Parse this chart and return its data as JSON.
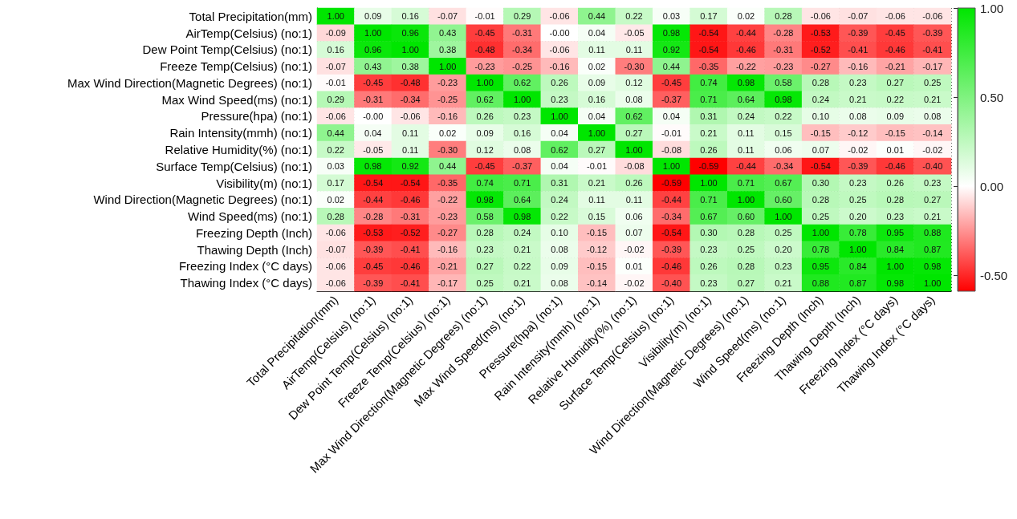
{
  "chart_data": {
    "type": "heatmap",
    "categories": [
      "Total Precipitation(mm)",
      "AirTemp(Celsius) (no:1)",
      "Dew Point Temp(Celsius) (no:1)",
      "Freeze Temp(Celsius) (no:1)",
      "Max Wind Direction(Magnetic Degrees) (no:1)",
      "Max Wind Speed(ms) (no:1)",
      "Pressure(hpa) (no:1)",
      "Rain Intensity(mmh) (no:1)",
      "Relative Humidity(%) (no:1)",
      "Surface Temp(Celsius) (no:1)",
      "Visibility(m) (no:1)",
      "Wind Direction(Magnetic Degrees) (no:1)",
      "Wind Speed(ms) (no:1)",
      "Freezing Depth (Inch)",
      "Thawing Depth (Inch)",
      "Freezing Index (°C days)",
      "Thawing Index (°C days)"
    ],
    "y_categories": [
      "Total Precipitation(mm)",
      "AirTemp(Celsius) (no:1)",
      "Dew Point Temp(Celsius) (no:1)",
      "Freeze Temp(Celsius) (no:1)",
      "Max Wind Direction(Magnetic Degrees) (no:1)",
      "Max Wind Speed(ms) (no:1)",
      "Pressure(hpa) (no:1)",
      "Rain Intensity(mmh) (no:1)",
      "Relative Humidity(%) (no:1)",
      "Surface Temp(Celsius) (no:1)",
      "Visibility(m) (no:1)",
      "Wind Direction(Magnetic Degrees) (no:1)",
      "Wind Speed(ms) (no:1)",
      "Freezing Depth (Inch)",
      "Thawing Depth (Inch)",
      "Freezing Index (°C days)",
      "Thawing Index (°C days)"
    ],
    "cells": [
      [
        1.0,
        0.09,
        0.16,
        -0.07,
        -0.01,
        0.29,
        -0.06,
        0.44,
        0.22,
        0.03,
        0.17,
        0.02,
        0.28,
        -0.06,
        -0.07,
        -0.06,
        -0.06
      ],
      [
        -0.09,
        1.0,
        0.96,
        0.43,
        -0.45,
        -0.31,
        -0.0,
        0.04,
        -0.05,
        0.98,
        -0.54,
        -0.44,
        -0.28,
        -0.53,
        -0.39,
        -0.45,
        -0.39
      ],
      [
        0.16,
        0.96,
        1.0,
        0.38,
        -0.48,
        -0.34,
        -0.06,
        0.11,
        0.11,
        0.92,
        -0.54,
        -0.46,
        -0.31,
        -0.52,
        -0.41,
        -0.46,
        -0.41
      ],
      [
        -0.07,
        0.43,
        0.38,
        1.0,
        -0.23,
        -0.25,
        -0.16,
        0.02,
        -0.3,
        0.44,
        -0.35,
        -0.22,
        -0.23,
        -0.27,
        -0.16,
        -0.21,
        -0.17
      ],
      [
        -0.01,
        -0.45,
        -0.48,
        -0.23,
        1.0,
        0.62,
        0.26,
        0.09,
        0.12,
        -0.45,
        0.74,
        0.98,
        0.58,
        0.28,
        0.23,
        0.27,
        0.25
      ],
      [
        0.29,
        -0.31,
        -0.34,
        -0.25,
        0.62,
        1.0,
        0.23,
        0.16,
        0.08,
        -0.37,
        0.71,
        0.64,
        0.98,
        0.24,
        0.21,
        0.22,
        0.21
      ],
      [
        -0.06,
        -0.0,
        -0.06,
        -0.16,
        0.26,
        0.23,
        1.0,
        0.04,
        0.62,
        0.04,
        0.31,
        0.24,
        0.22,
        0.1,
        0.08,
        0.09,
        0.08
      ],
      [
        0.44,
        0.04,
        0.11,
        0.02,
        0.09,
        0.16,
        0.04,
        1.0,
        0.27,
        -0.01,
        0.21,
        0.11,
        0.15,
        -0.15,
        -0.12,
        -0.15,
        -0.14
      ],
      [
        0.22,
        -0.05,
        0.11,
        -0.3,
        0.12,
        0.08,
        0.62,
        0.27,
        1.0,
        -0.08,
        0.26,
        0.11,
        0.06,
        0.07,
        -0.02,
        0.01,
        -0.02
      ],
      [
        0.03,
        0.98,
        0.92,
        0.44,
        -0.45,
        -0.37,
        0.04,
        -0.01,
        -0.08,
        1.0,
        -0.59,
        -0.44,
        -0.34,
        -0.54,
        -0.39,
        -0.46,
        -0.4
      ],
      [
        0.17,
        -0.54,
        -0.54,
        -0.35,
        0.74,
        0.71,
        0.31,
        0.21,
        0.26,
        -0.59,
        1.0,
        0.71,
        0.67,
        0.3,
        0.23,
        0.26,
        0.23
      ],
      [
        0.02,
        -0.44,
        -0.46,
        -0.22,
        0.98,
        0.64,
        0.24,
        0.11,
        0.11,
        -0.44,
        0.71,
        1.0,
        0.6,
        0.28,
        0.25,
        0.28,
        0.27
      ],
      [
        0.28,
        -0.28,
        -0.31,
        -0.23,
        0.58,
        0.98,
        0.22,
        0.15,
        0.06,
        -0.34,
        0.67,
        0.6,
        1.0,
        0.25,
        0.2,
        0.23,
        0.21
      ],
      [
        -0.06,
        -0.53,
        -0.52,
        -0.27,
        0.28,
        0.24,
        0.1,
        -0.15,
        0.07,
        -0.54,
        0.3,
        0.28,
        0.25,
        1.0,
        0.78,
        0.95,
        0.88
      ],
      [
        -0.07,
        -0.39,
        -0.41,
        -0.16,
        0.23,
        0.21,
        0.08,
        -0.12,
        -0.02,
        -0.39,
        0.23,
        0.25,
        0.2,
        0.78,
        1.0,
        0.84,
        0.87
      ],
      [
        -0.06,
        -0.45,
        -0.46,
        -0.21,
        0.27,
        0.22,
        0.09,
        -0.15,
        0.01,
        -0.46,
        0.26,
        0.28,
        0.23,
        0.95,
        0.84,
        1.0,
        0.98
      ],
      [
        -0.06,
        -0.39,
        -0.41,
        -0.17,
        0.25,
        0.21,
        0.08,
        -0.14,
        -0.02,
        -0.4,
        0.23,
        0.27,
        0.21,
        0.88,
        0.87,
        0.98,
        1.0
      ]
    ],
    "cell_labels": [
      [
        "1.00",
        "0.09",
        "0.16",
        "-0.07",
        "-0.01",
        "0.29",
        "-0.06",
        "0.44",
        "0.22",
        "0.03",
        "0.17",
        "0.02",
        "0.28",
        "-0.06",
        "-0.07",
        "-0.06",
        "-0.06"
      ],
      [
        "-0.09",
        "1.00",
        "0.96",
        "0.43",
        "-0.45",
        "-0.31",
        "-0.00",
        "0.04",
        "-0.05",
        "0.98",
        "-0.54",
        "-0.44",
        "-0.28",
        "-0.53",
        "-0.39",
        "-0.45",
        "-0.39"
      ],
      [
        "0.16",
        "0.96",
        "1.00",
        "0.38",
        "-0.48",
        "-0.34",
        "-0.06",
        "0.11",
        "0.11",
        "0.92",
        "-0.54",
        "-0.46",
        "-0.31",
        "-0.52",
        "-0.41",
        "-0.46",
        "-0.41"
      ],
      [
        "-0.07",
        "0.43",
        "0.38",
        "1.00",
        "-0.23",
        "-0.25",
        "-0.16",
        "0.02",
        "-0.30",
        "0.44",
        "-0.35",
        "-0.22",
        "-0.23",
        "-0.27",
        "-0.16",
        "-0.21",
        "-0.17"
      ],
      [
        "-0.01",
        "-0.45",
        "-0.48",
        "-0.23",
        "1.00",
        "0.62",
        "0.26",
        "0.09",
        "0.12",
        "-0.45",
        "0.74",
        "0.98",
        "0.58",
        "0.28",
        "0.23",
        "0.27",
        "0.25"
      ],
      [
        "0.29",
        "-0.31",
        "-0.34",
        "-0.25",
        "0.62",
        "1.00",
        "0.23",
        "0.16",
        "0.08",
        "-0.37",
        "0.71",
        "0.64",
        "0.98",
        "0.24",
        "0.21",
        "0.22",
        "0.21"
      ],
      [
        "-0.06",
        "-0.00",
        "-0.06",
        "-0.16",
        "0.26",
        "0.23",
        "1.00",
        "0.04",
        "0.62",
        "0.04",
        "0.31",
        "0.24",
        "0.22",
        "0.10",
        "0.08",
        "0.09",
        "0.08"
      ],
      [
        "0.44",
        "0.04",
        "0.11",
        "0.02",
        "0.09",
        "0.16",
        "0.04",
        "1.00",
        "0.27",
        "-0.01",
        "0.21",
        "0.11",
        "0.15",
        "-0.15",
        "-0.12",
        "-0.15",
        "-0.14"
      ],
      [
        "0.22",
        "-0.05",
        "0.11",
        "-0.30",
        "0.12",
        "0.08",
        "0.62",
        "0.27",
        "1.00",
        "-0.08",
        "0.26",
        "0.11",
        "0.06",
        "0.07",
        "-0.02",
        "0.01",
        "-0.02"
      ],
      [
        "0.03",
        "0.98",
        "0.92",
        "0.44",
        "-0.45",
        "-0.37",
        "0.04",
        "-0.01",
        "-0.08",
        "1.00",
        "-0.59",
        "-0.44",
        "-0.34",
        "-0.54",
        "-0.39",
        "-0.46",
        "-0.40"
      ],
      [
        "0.17",
        "-0.54",
        "-0.54",
        "-0.35",
        "0.74",
        "0.71",
        "0.31",
        "0.21",
        "0.26",
        "-0.59",
        "1.00",
        "0.71",
        "0.67",
        "0.30",
        "0.23",
        "0.26",
        "0.23"
      ],
      [
        "0.02",
        "-0.44",
        "-0.46",
        "-0.22",
        "0.98",
        "0.64",
        "0.24",
        "0.11",
        "0.11",
        "-0.44",
        "0.71",
        "1.00",
        "0.60",
        "0.28",
        "0.25",
        "0.28",
        "0.27"
      ],
      [
        "0.28",
        "-0.28",
        "-0.31",
        "-0.23",
        "0.58",
        "0.98",
        "0.22",
        "0.15",
        "0.06",
        "-0.34",
        "0.67",
        "0.60",
        "1.00",
        "0.25",
        "0.20",
        "0.23",
        "0.21"
      ],
      [
        "-0.06",
        "-0.53",
        "-0.52",
        "-0.27",
        "0.28",
        "0.24",
        "0.10",
        "-0.15",
        "0.07",
        "-0.54",
        "0.30",
        "0.28",
        "0.25",
        "1.00",
        "0.78",
        "0.95",
        "0.88"
      ],
      [
        "-0.07",
        "-0.39",
        "-0.41",
        "-0.16",
        "0.23",
        "0.21",
        "0.08",
        "-0.12",
        "-0.02",
        "-0.39",
        "0.23",
        "0.25",
        "0.20",
        "0.78",
        "1.00",
        "0.84",
        "0.87"
      ],
      [
        "-0.06",
        "-0.45",
        "-0.46",
        "-0.21",
        "0.27",
        "0.22",
        "0.09",
        "-0.15",
        "0.01",
        "-0.46",
        "0.26",
        "0.28",
        "0.23",
        "0.95",
        "0.84",
        "1.00",
        "0.98"
      ],
      [
        "-0.06",
        "-0.39",
        "-0.41",
        "-0.17",
        "0.25",
        "0.21",
        "0.08",
        "-0.14",
        "-0.02",
        "-0.40",
        "0.23",
        "0.27",
        "0.21",
        "0.88",
        "0.87",
        "0.98",
        "1.00"
      ]
    ],
    "clim": [
      -0.59,
      1.0
    ],
    "cticks": [
      {
        "value": -0.5,
        "label": "-0.50"
      },
      {
        "value": 0,
        "label": "0.00"
      },
      {
        "value": 0.5,
        "label": "0.50"
      },
      {
        "value": 1,
        "label": "1.00"
      }
    ],
    "grid": true
  }
}
